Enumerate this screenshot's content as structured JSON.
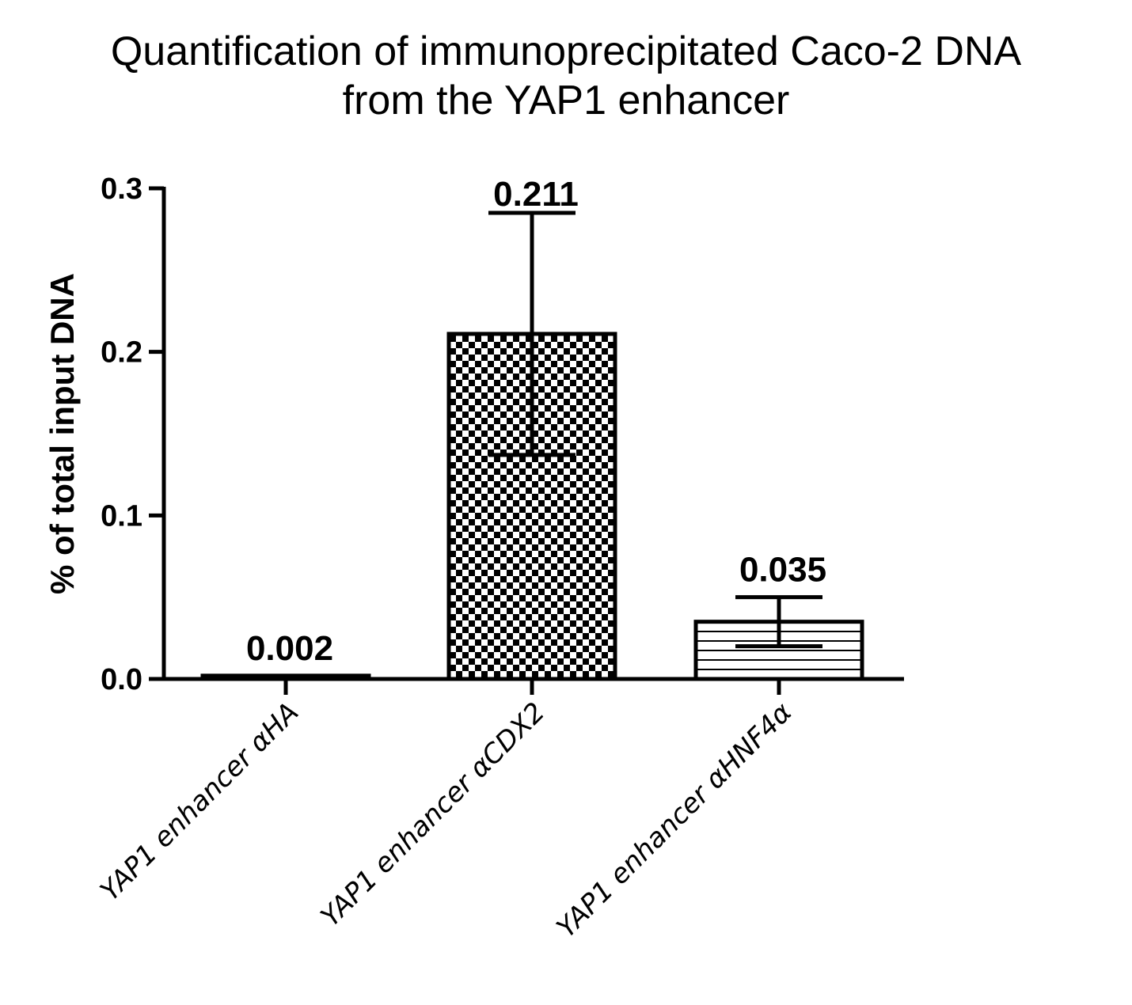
{
  "chart_data": {
    "type": "bar",
    "title": [
      "Quantification of immunoprecipitated Caco-2 DNA",
      "from the YAP1 enhancer"
    ],
    "xlabel": "",
    "ylabel": "% of total input DNA",
    "ylim": [
      0,
      0.3
    ],
    "yticks": [
      0.0,
      0.1,
      0.2,
      0.3
    ],
    "ytick_labels": [
      "0.0",
      "0.1",
      "0.2",
      "0.3"
    ],
    "categories": [
      "YAP1 enhancer αHA",
      "YAP1 enhancer αCDX2",
      "YAP1 enhancer αHNF4α"
    ],
    "values": [
      0.002,
      0.211,
      0.035
    ],
    "error": [
      0.0005,
      0.074,
      0.015
    ],
    "value_labels": [
      "0.002",
      "0.211",
      "0.035"
    ],
    "patterns": [
      "solid",
      "checkerboard",
      "horizontal-lines"
    ],
    "colors": {
      "bar_stroke": "#000000",
      "pattern": "#000000",
      "background": "#ffffff"
    },
    "grid": false,
    "legend": "none"
  }
}
